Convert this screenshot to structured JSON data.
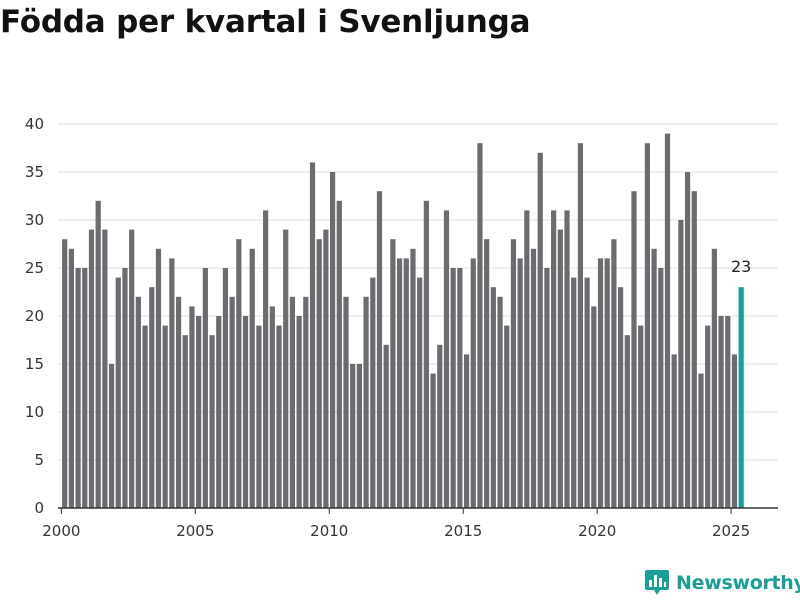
{
  "chart_data": {
    "type": "bar",
    "title": "Födda per kvartal i Svenljunga",
    "xlabel": "",
    "ylabel": "",
    "ylim": [
      0,
      40
    ],
    "yticks": [
      0,
      5,
      10,
      15,
      20,
      25,
      30,
      35,
      40
    ],
    "xlim": [
      1999.875,
      2026.75
    ],
    "xticks": [
      2000,
      2005,
      2010,
      2015,
      2020,
      2025
    ],
    "grid": true,
    "x_start": 2000,
    "quarters_per_year": 4,
    "values": [
      28,
      27,
      25,
      25,
      29,
      32,
      29,
      15,
      24,
      25,
      29,
      22,
      19,
      23,
      27,
      19,
      26,
      22,
      18,
      21,
      20,
      25,
      18,
      20,
      25,
      22,
      28,
      20,
      27,
      19,
      31,
      21,
      19,
      29,
      22,
      20,
      22,
      36,
      28,
      29,
      35,
      32,
      22,
      15,
      15,
      22,
      24,
      33,
      17,
      28,
      26,
      26,
      27,
      24,
      32,
      14,
      17,
      31,
      25,
      25,
      16,
      26,
      38,
      28,
      23,
      22,
      19,
      28,
      26,
      31,
      27,
      37,
      25,
      31,
      29,
      31,
      24,
      38,
      24,
      21,
      26,
      26,
      28,
      23,
      18,
      33,
      19,
      38,
      27,
      25,
      39,
      16,
      30,
      35,
      33,
      14,
      19,
      27,
      20,
      20,
      16,
      23
    ],
    "highlight_last": true,
    "highlight_label": "23",
    "bar_color": "#6b6b70",
    "highlight_color": "#1a9e96",
    "grid_color": "#dcdcdc",
    "axis_color": "#333333"
  },
  "brand": {
    "name": "Newsworthy",
    "color": "#1a9e96"
  }
}
